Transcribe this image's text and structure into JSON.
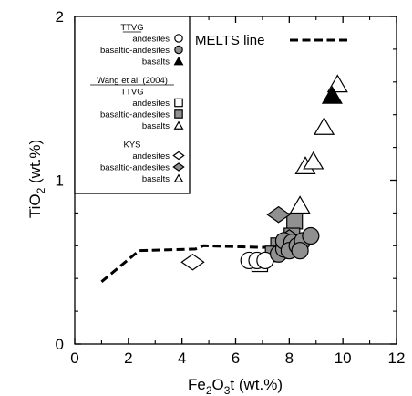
{
  "chart_data": {
    "type": "scatter",
    "xlabel": {
      "prefix": "Fe",
      "sub1": "2",
      "mid": "O",
      "sub2": "3",
      "suffix": "t (wt.%)"
    },
    "ylabel": {
      "prefix": "TiO",
      "sub": "2",
      "suffix": " (wt.%)"
    },
    "xlim": [
      0,
      12
    ],
    "ylim": [
      0,
      2
    ],
    "x_ticks": [
      0,
      2,
      4,
      6,
      8,
      10,
      12
    ],
    "y_ticks": [
      0,
      1,
      2
    ],
    "x_tick_labels": [
      "0",
      "2",
      "4",
      "6",
      "8",
      "10",
      "12"
    ],
    "y_tick_labels": [
      "0",
      "1",
      "2"
    ],
    "grid": false,
    "legend_placement": "top-left",
    "melts_line": {
      "label": "MELTS line",
      "points": [
        [
          1.0,
          0.38
        ],
        [
          2.4,
          0.57
        ],
        [
          4.5,
          0.58
        ],
        [
          4.8,
          0.6
        ],
        [
          7.0,
          0.59
        ],
        [
          8.3,
          0.6
        ]
      ]
    },
    "legend": {
      "groups": [
        {
          "title": "TTVG",
          "underline": true,
          "entries": [
            {
              "label": "andesites",
              "marker": "circle",
              "fill": "#ffffff"
            },
            {
              "label": "basaltic-andesites",
              "marker": "circle",
              "fill": "#909090"
            },
            {
              "label": "basalts",
              "marker": "triangle",
              "fill": "#000000"
            }
          ]
        },
        {
          "title": "Wang et al. (2004)",
          "underline": true,
          "entries": []
        },
        {
          "title": "TTVG",
          "underline": false,
          "entries": [
            {
              "label": "andesites",
              "marker": "square",
              "fill": "#ffffff"
            },
            {
              "label": "basaltic-andesites",
              "marker": "square",
              "fill": "#909090"
            },
            {
              "label": "basalts",
              "marker": "triangle",
              "fill": "#ffffff"
            }
          ]
        },
        {
          "title": "KYS",
          "underline": false,
          "entries": [
            {
              "label": "andesites",
              "marker": "diamond",
              "fill": "#ffffff"
            },
            {
              "label": "basaltic-andesites",
              "marker": "diamond",
              "fill": "#909090"
            },
            {
              "label": "basalts",
              "marker": "triangle",
              "fill": "#ffffff"
            }
          ]
        }
      ]
    },
    "series": [
      {
        "group": "Wang et al. (2004) TTVG",
        "label": "andesites",
        "marker": "square",
        "fill": "#ffffff",
        "points": [
          [
            6.9,
            0.49
          ]
        ]
      },
      {
        "group": "Wang et al. (2004) TTVG",
        "label": "basaltic-andesites",
        "marker": "square",
        "fill": "#909090",
        "points": [
          [
            8.2,
            0.75
          ],
          [
            7.6,
            0.6
          ],
          [
            7.8,
            0.57
          ],
          [
            7.4,
            0.55
          ],
          [
            8.4,
            0.62
          ],
          [
            8.1,
            0.66
          ]
        ]
      },
      {
        "group": "KYS",
        "label": "andesites",
        "marker": "diamond",
        "fill": "#ffffff",
        "points": [
          [
            4.4,
            0.5
          ]
        ]
      },
      {
        "group": "KYS",
        "label": "basaltic-andesites",
        "marker": "diamond",
        "fill": "#909090",
        "points": [
          [
            7.6,
            0.79
          ],
          [
            8.0,
            0.65
          ]
        ]
      },
      {
        "group": "TTVG",
        "label": "andesites",
        "marker": "circle",
        "fill": "#ffffff",
        "points": [
          [
            6.5,
            0.51
          ],
          [
            6.8,
            0.51
          ],
          [
            7.1,
            0.51
          ]
        ]
      },
      {
        "group": "TTVG",
        "label": "basaltic-andesites",
        "marker": "circle",
        "fill": "#909090",
        "points": [
          [
            7.6,
            0.55
          ],
          [
            7.8,
            0.58
          ],
          [
            7.8,
            0.63
          ],
          [
            8.1,
            0.62
          ],
          [
            8.0,
            0.57
          ],
          [
            8.3,
            0.6
          ],
          [
            8.5,
            0.63
          ],
          [
            8.8,
            0.66
          ],
          [
            8.4,
            0.57
          ]
        ]
      },
      {
        "group": "KYS",
        "label": "basalts",
        "marker": "triangle",
        "fill": "#ffffff",
        "points": [
          [
            8.4,
            0.85
          ],
          [
            8.6,
            1.09
          ],
          [
            8.9,
            1.12
          ],
          [
            9.3,
            1.33
          ],
          [
            9.8,
            1.59
          ]
        ]
      },
      {
        "group": "TTVG",
        "label": "basalts",
        "marker": "triangle",
        "fill": "#000000",
        "points": [
          [
            9.6,
            1.52
          ]
        ]
      }
    ]
  }
}
